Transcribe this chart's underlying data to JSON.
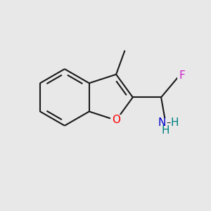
{
  "bg_color": "#e8e8e8",
  "bond_color": "#1a1a1a",
  "bond_width": 1.5,
  "atom_colors": {
    "O": "#ff0000",
    "N": "#0000cc",
    "F": "#cc22cc",
    "H_teal": "#008080"
  },
  "font_size": 11,
  "font_size_small": 9,
  "xlim": [
    -2.2,
    1.6
  ],
  "ylim": [
    -1.3,
    1.1
  ]
}
